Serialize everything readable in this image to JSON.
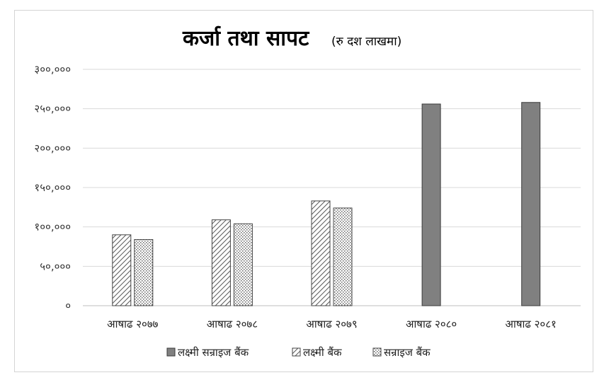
{
  "chart_data": {
    "type": "bar",
    "title": "कर्जा तथा सापट",
    "subtitle": "(रु दश लाखमा)",
    "categories": [
      "आषाढ २०७७",
      "आषाढ २०७८",
      "आषाढ २०७९",
      "आषाढ २०८०",
      "आषाढ २०८१"
    ],
    "yticks": [
      "०",
      "५०,०००",
      "१००,०००",
      "१५०,०००",
      "२००,०००",
      "२५०,०००",
      "३००,०००"
    ],
    "ylim": [
      0,
      300000
    ],
    "grid": true,
    "legend_position": "bottom",
    "series": [
      {
        "name": "लक्ष्मी सन्राइज बैंक",
        "values": [
          null,
          null,
          null,
          256000,
          258000
        ],
        "color": "#808080",
        "pattern": "solid"
      },
      {
        "name": "लक्ष्मी बैंक",
        "values": [
          90000,
          109000,
          133000,
          null,
          null
        ],
        "color": "#595959",
        "pattern": "diagonal"
      },
      {
        "name": "सन्राइज बैंक",
        "values": [
          84000,
          104000,
          124000,
          null,
          null
        ],
        "color": "#595959",
        "pattern": "dotted"
      }
    ]
  }
}
